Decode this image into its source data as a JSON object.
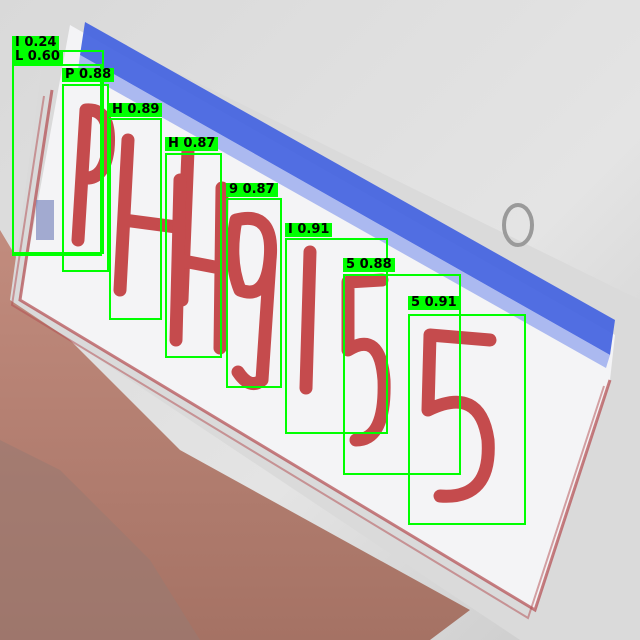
{
  "detections": [
    {
      "char": "I",
      "score": "0.24",
      "label": "I 0.24"
    },
    {
      "char": "L",
      "score": "0.60",
      "label": "L 0.60"
    },
    {
      "char": "P",
      "score": "0.88",
      "label": "P 0.88"
    },
    {
      "char": "H",
      "score": "0.89",
      "label": "H 0.89"
    },
    {
      "char": "H",
      "score": "0.87",
      "label": "H 0.87"
    },
    {
      "char": "9",
      "score": "0.87",
      "label": "9 0.87"
    },
    {
      "char": "I",
      "score": "0.91",
      "label": "I 0.91"
    },
    {
      "char": "5",
      "score": "0.88",
      "label": "5 0.88"
    },
    {
      "char": "5",
      "score": "0.91",
      "label": "5 0.91"
    }
  ],
  "colors": {
    "box": "#00ff00",
    "plate_text": "#c0393b",
    "plate_stripe": "#3f5fe0",
    "plate_body": "#f4f4f6",
    "ground": "#b07a6a"
  },
  "plate": {
    "visible_characters": "PHH9I55"
  }
}
